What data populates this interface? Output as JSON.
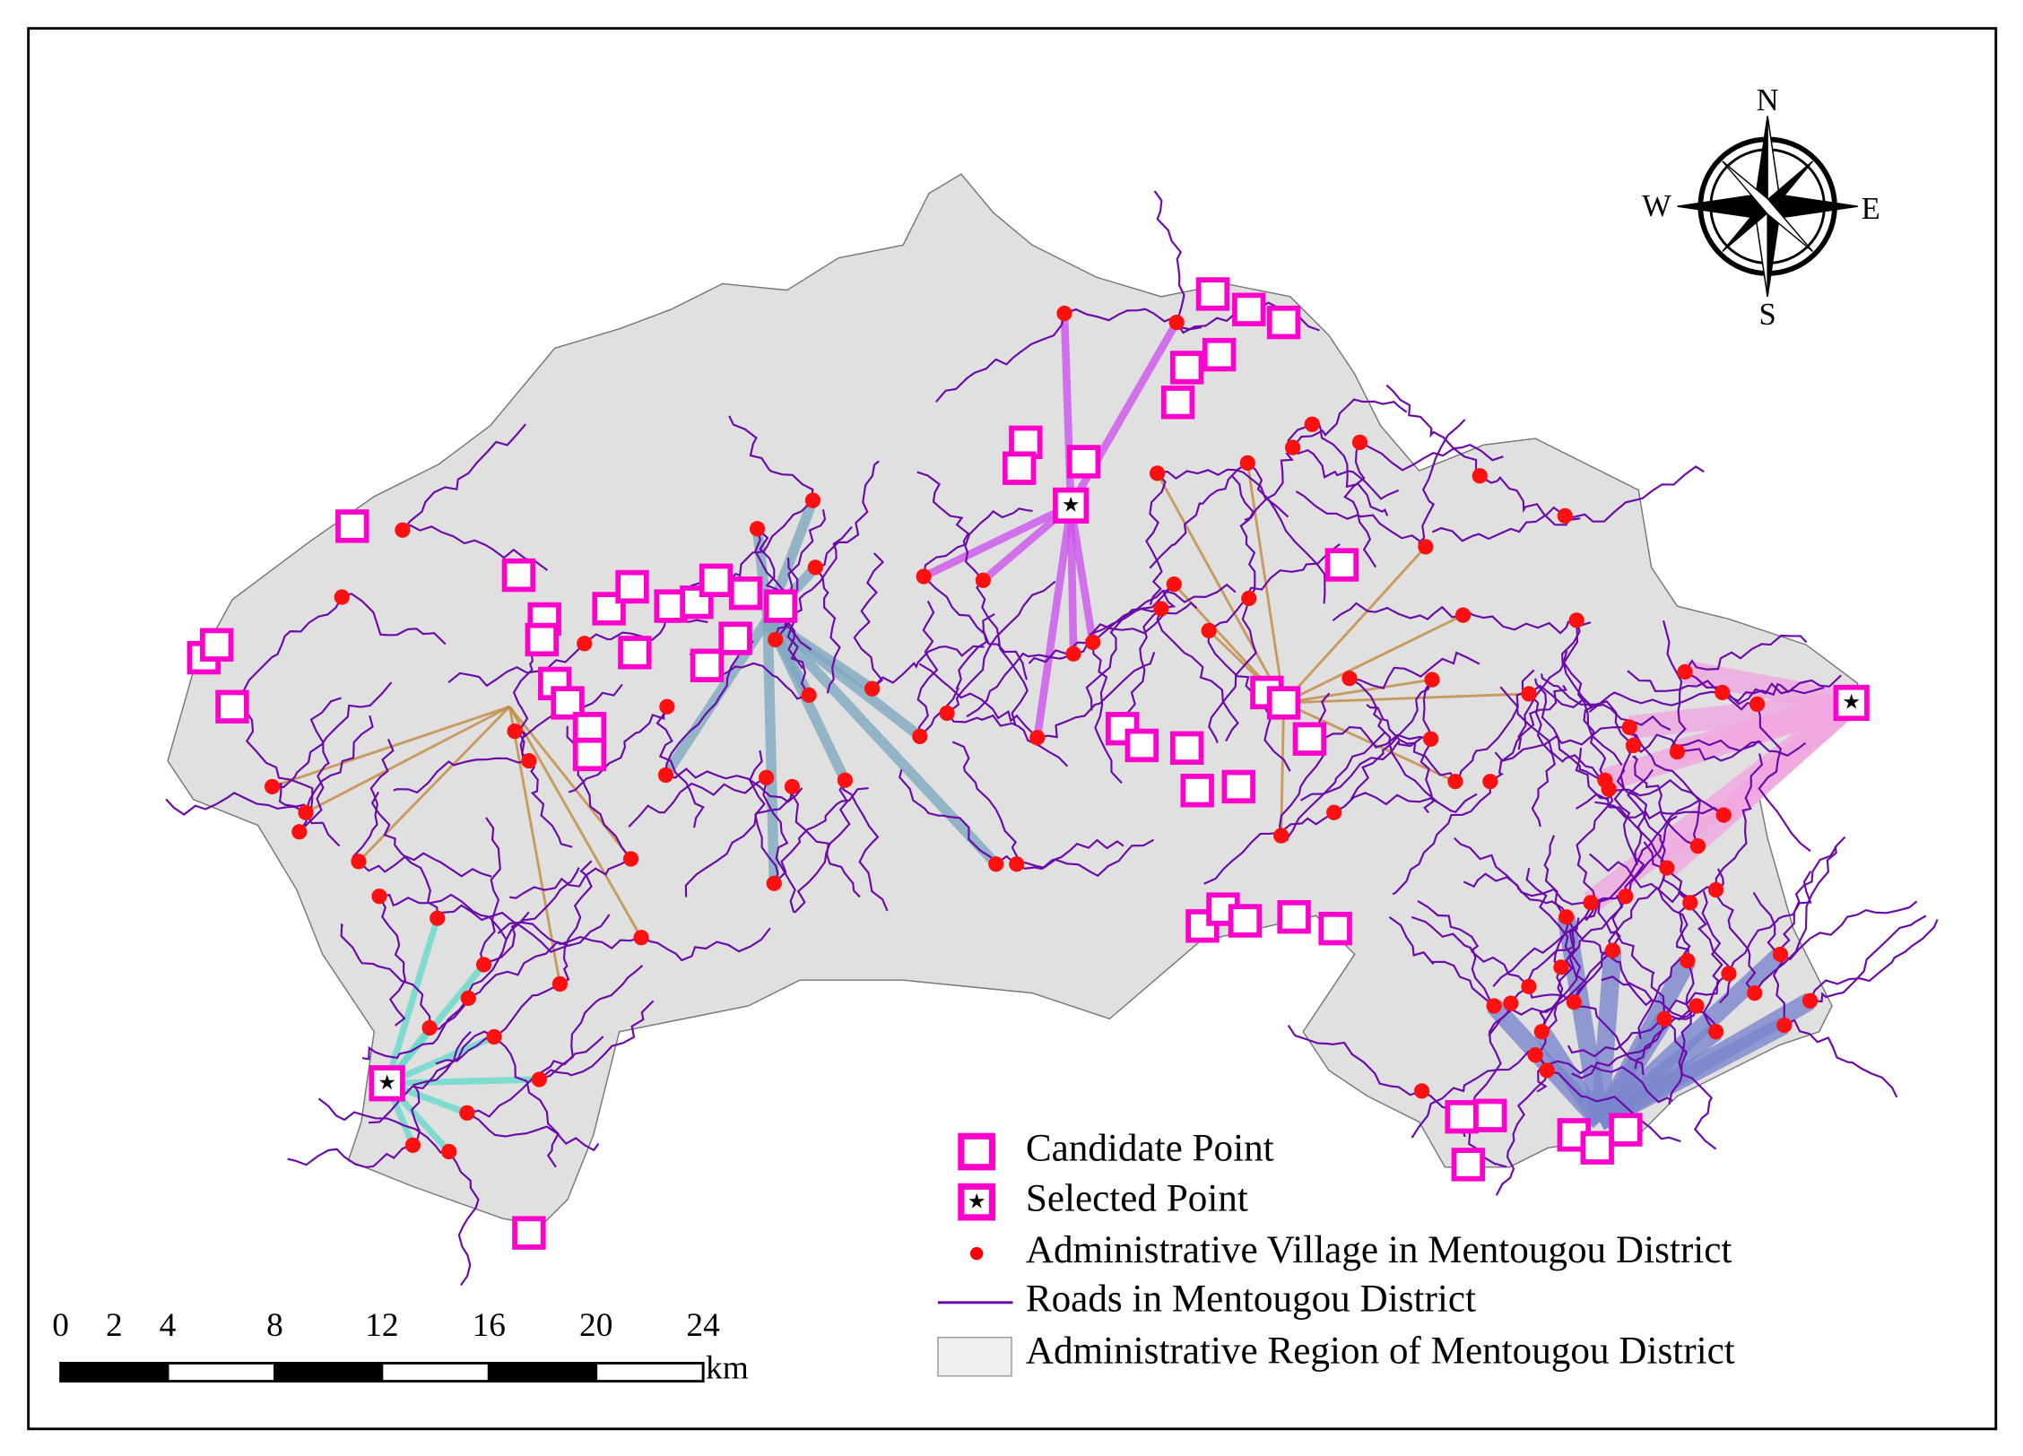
{
  "compass": {
    "n": "N",
    "s": "S",
    "w": "W",
    "e": "E"
  },
  "scale_bar": {
    "ticks": [
      0,
      2,
      4,
      8,
      12,
      16,
      20,
      24
    ],
    "unit": "km"
  },
  "legend": [
    "Candidate Point",
    "Selected Point",
    "Administrative Village in Mentougou District",
    "Roads in Mentougou District",
    "Administrative Region of Mentougou District"
  ]
}
